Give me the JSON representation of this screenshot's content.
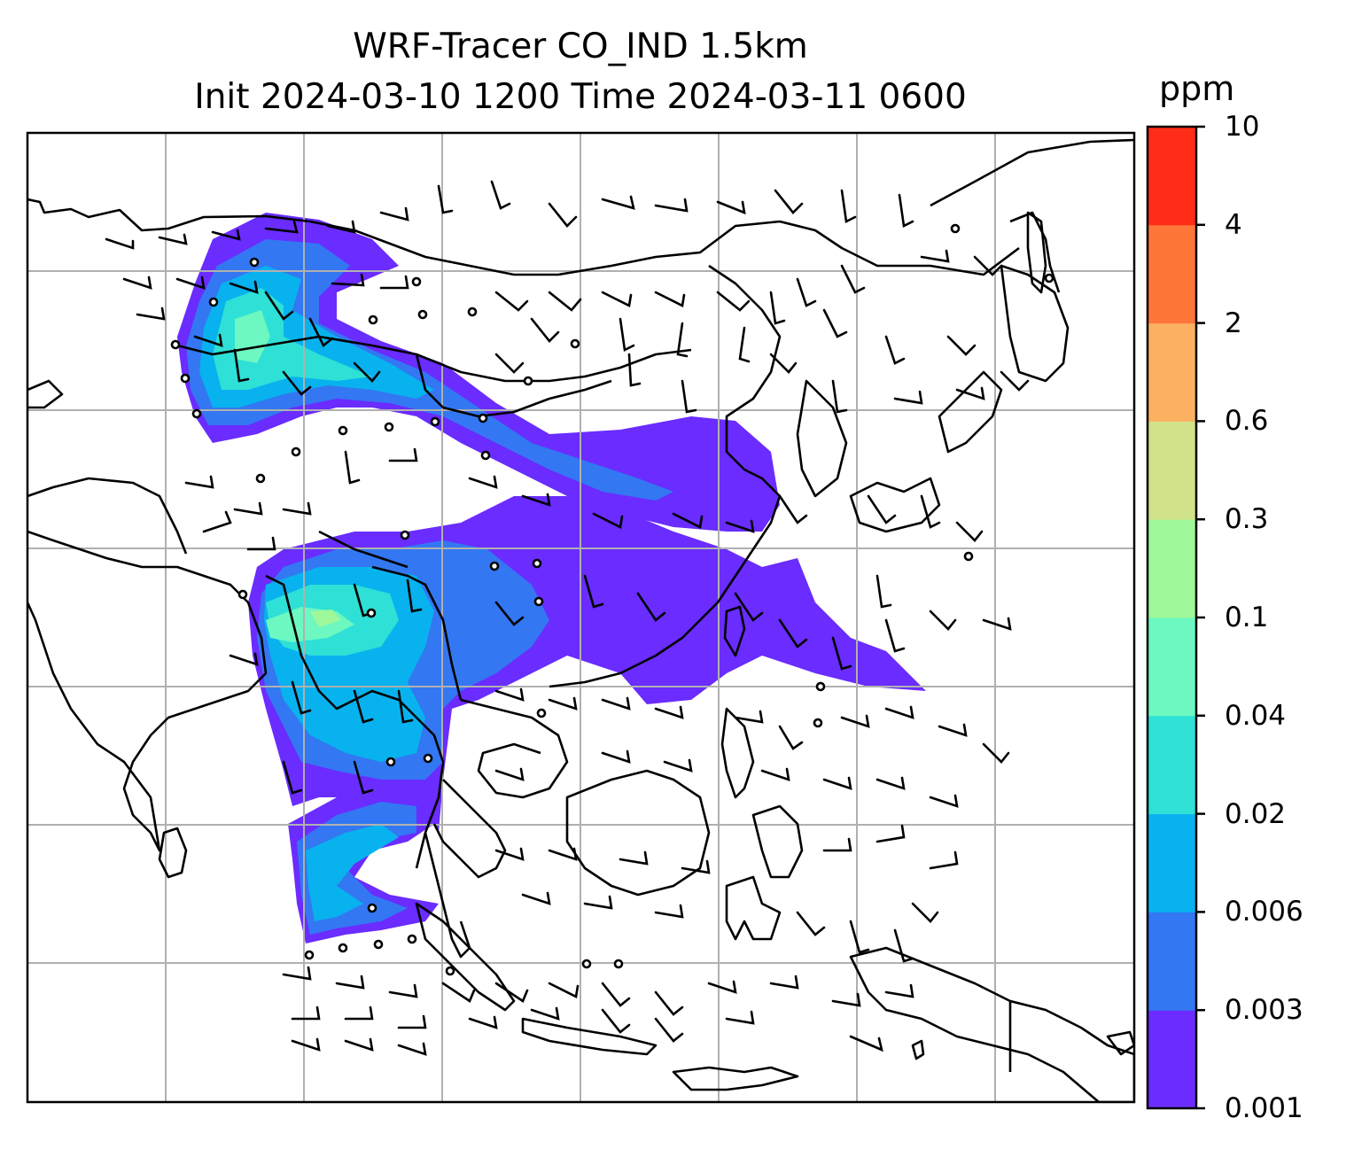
{
  "title": {
    "line1": "WRF-Tracer CO_IND 1.5km",
    "line2": "Init 2024-03-10 1200 Time 2024-03-11 0600"
  },
  "colorbar": {
    "unit": "ppm",
    "ticks": [
      "0.001",
      "0.003",
      "0.006",
      "0.02",
      "0.04",
      "0.1",
      "0.3",
      "0.6",
      "2",
      "4",
      "10"
    ],
    "colors": [
      "#6a2cff",
      "#3377f2",
      "#08b2ee",
      "#2ee0d6",
      "#6cf8c0",
      "#9ef89a",
      "#d0e28a",
      "#fcb061",
      "#ff763a",
      "#ff2c18"
    ]
  },
  "map": {
    "projection": "lat-lon",
    "gridlines": true,
    "overlays": [
      "coastlines",
      "wind-barbs",
      "tracer-concentration"
    ],
    "colors": {
      "coast": "#000000",
      "grid": "#b0b0b0"
    }
  }
}
